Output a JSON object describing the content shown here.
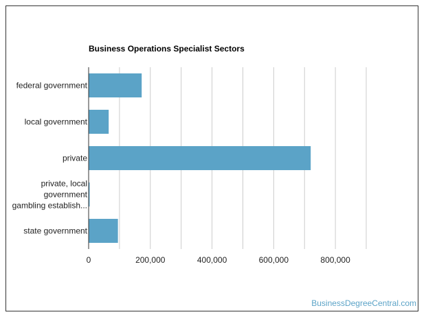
{
  "chart_data": {
    "type": "bar",
    "orientation": "horizontal",
    "title": "Business Operations Specialist Sectors",
    "categories": [
      "federal government",
      "local government",
      "private",
      "private, local government gambling establish...",
      "state government"
    ],
    "category_lines": [
      [
        "federal government"
      ],
      [
        "local government"
      ],
      [
        "private"
      ],
      [
        "private, local",
        "government",
        "gambling establish..."
      ],
      [
        "state government"
      ]
    ],
    "values": [
      172000,
      65000,
      720000,
      1200,
      95000
    ],
    "xlim": [
      0,
      900000
    ],
    "xticks": [
      0,
      200000,
      400000,
      600000,
      800000
    ],
    "xtick_labels": [
      "0",
      "200,000",
      "400,000",
      "600,000",
      "800,000"
    ],
    "grid": true,
    "bar_color": "#5ba3c7"
  },
  "watermark": "BusinessDegreeCentral.com"
}
